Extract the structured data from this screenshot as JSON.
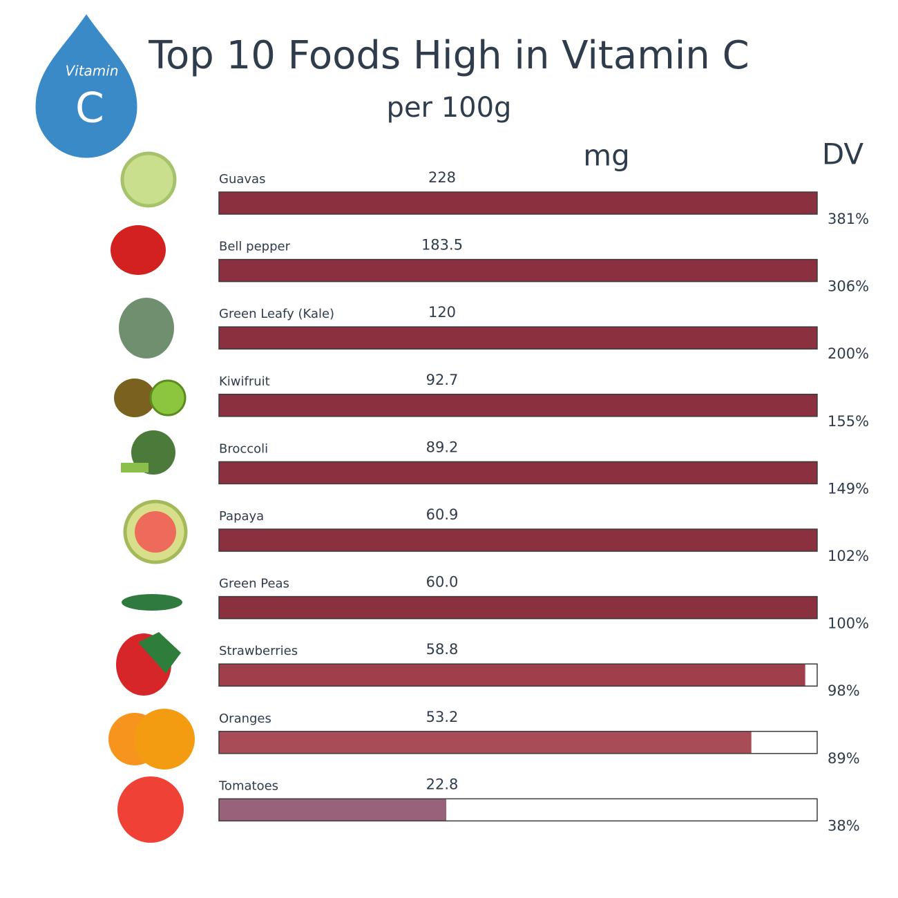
{
  "badge": {
    "label": "Vitamin",
    "letter": "C"
  },
  "chart_data": {
    "type": "bar",
    "orientation": "horizontal",
    "title": "Top 10 Foods High in Vitamin C",
    "subtitle": "per 100g",
    "categories": [
      "Guavas",
      "Bell pepper",
      "Green Leafy (Kale)",
      "Kiwifruit",
      "Broccoli",
      "Papaya",
      "Green Peas",
      "Strawberries",
      "Oranges",
      "Tomatoes"
    ],
    "xlim": [
      0,
      100
    ],
    "series": [
      {
        "name": "mg",
        "values": [
          228,
          183.5,
          120,
          92.7,
          89.2,
          60.9,
          60.0,
          58.8,
          53.2,
          22.8
        ],
        "value_labels": [
          "228",
          "183.5",
          "120",
          "92.7",
          "89.2",
          "60.9",
          "60.0",
          "58.8",
          "53.2",
          "22.8"
        ]
      },
      {
        "name": "DV",
        "values": [
          381,
          306,
          200,
          155,
          149,
          102,
          100,
          98,
          89,
          38
        ],
        "value_labels": [
          "381%",
          "306%",
          "200%",
          "155%",
          "149%",
          "102%",
          "100%",
          "98%",
          "89%",
          "38%"
        ],
        "colors": [
          "#8a303e",
          "#8a303e",
          "#8a303e",
          "#8a303e",
          "#8a303e",
          "#8a303e",
          "#8a303e",
          "#a13e4b",
          "#a84c58",
          "#97627a"
        ]
      }
    ]
  }
}
